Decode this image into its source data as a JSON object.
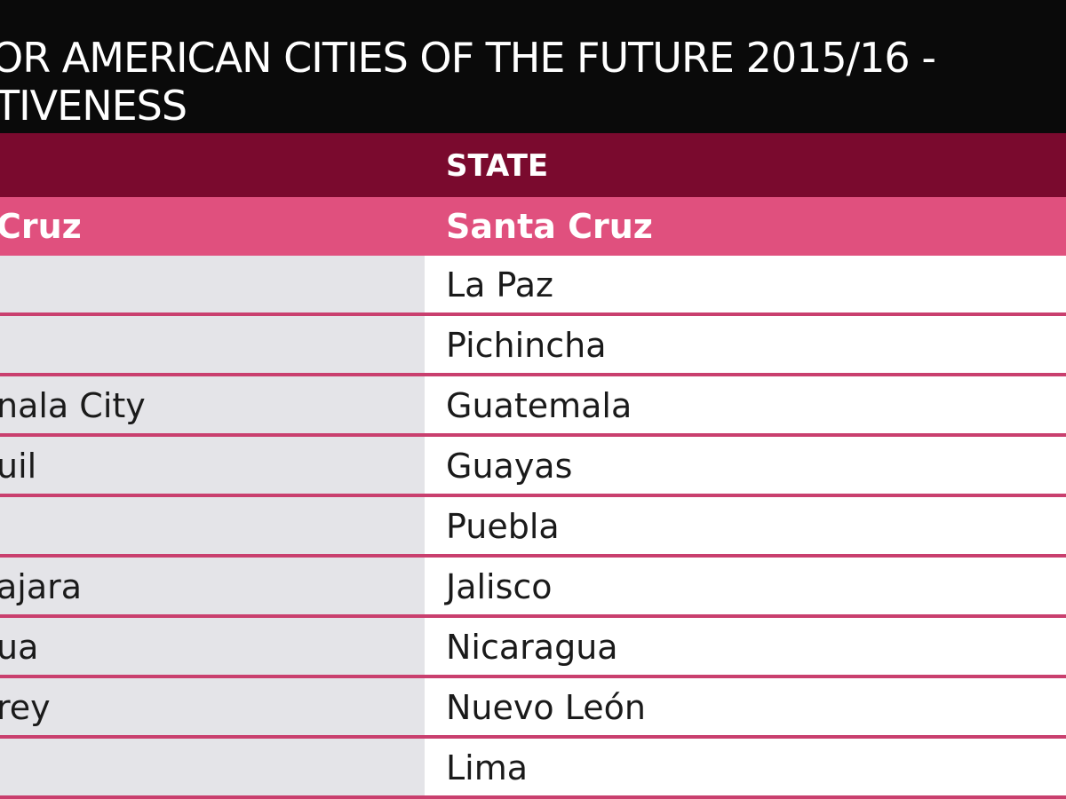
{
  "title": {
    "line1": "OR AMERICAN CITIES OF THE FUTURE 2015/16 -",
    "line2": "TIVENESS"
  },
  "table": {
    "header": {
      "state": "STATE"
    },
    "highlight": {
      "city": "Cruz",
      "state": "Santa Cruz"
    },
    "rows": [
      {
        "city": "",
        "state": "La Paz"
      },
      {
        "city": "",
        "state": "Pichincha"
      },
      {
        "city": "nala City",
        "state": "Guatemala"
      },
      {
        "city": "uil",
        "state": "Guayas"
      },
      {
        "city": "",
        "state": "Puebla"
      },
      {
        "city": "ajara",
        "state": "Jalisco"
      },
      {
        "city": "ua",
        "state": "Nicaragua"
      },
      {
        "city": "rey",
        "state": "Nuevo León"
      },
      {
        "city": "",
        "state": "Lima"
      }
    ]
  },
  "colors": {
    "title_bg": "#0a0a0a",
    "header_bg": "#7a0a2e",
    "highlight_bg": "#e0507e",
    "row_divider": "#c93f6e",
    "city_col_bg": "#e4e4e8"
  }
}
